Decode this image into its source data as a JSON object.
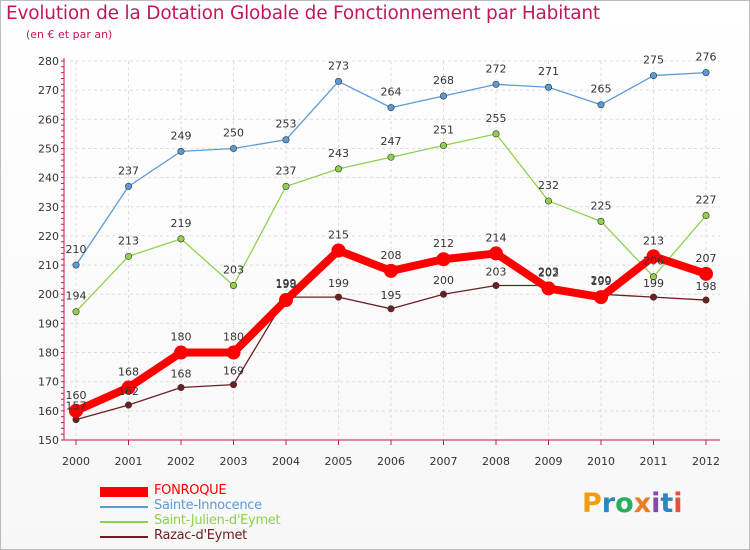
{
  "header": {
    "title": "Evolution de la Dotation Globale de Fonctionnement par Habitant",
    "subtitle": "(en € et par an)"
  },
  "logo": {
    "letters": [
      "P",
      "r",
      "o",
      "x",
      "i",
      "t",
      "i"
    ],
    "colors": [
      "#f39c12",
      "#2e86c1",
      "#27ae60",
      "#e67e22",
      "#8e44ad",
      "#2e86c1",
      "#e74c3c"
    ]
  },
  "chart_data": {
    "type": "line",
    "x": [
      "2000",
      "2001",
      "2002",
      "2003",
      "2004",
      "2005",
      "2006",
      "2007",
      "2008",
      "2009",
      "2010",
      "2011",
      "2012"
    ],
    "ylim": [
      150,
      280
    ],
    "yticks": [
      150,
      160,
      170,
      180,
      190,
      200,
      210,
      220,
      230,
      240,
      250,
      260,
      270,
      280
    ],
    "grid": true,
    "legend_position": "bottom-left",
    "series": [
      {
        "name": "Razac-d'Eymet",
        "color": "#6d1f22",
        "values": [
          157,
          162,
          168,
          169,
          199,
          199,
          195,
          200,
          203,
          203,
          200,
          199,
          198
        ]
      },
      {
        "name": "Saint-Julien-d'Eymet",
        "color": "#8fd14f",
        "values": [
          194,
          213,
          219,
          203,
          237,
          243,
          247,
          251,
          255,
          232,
          225,
          206,
          227
        ]
      },
      {
        "name": "Sainte-Innocence",
        "color": "#5b9bd5",
        "values": [
          210,
          237,
          249,
          250,
          253,
          273,
          264,
          268,
          272,
          271,
          265,
          275,
          276
        ]
      },
      {
        "name": "FONROQUE",
        "color": "#ff0000",
        "values": [
          160,
          168,
          180,
          180,
          198,
          215,
          208,
          212,
          214,
          202,
          199,
          213,
          207
        ]
      }
    ]
  },
  "legend": [
    {
      "label": "FONROQUE",
      "color": "#ff0000"
    },
    {
      "label": "Sainte-Innocence",
      "color": "#5b9bd5"
    },
    {
      "label": "Saint-Julien-d'Eymet",
      "color": "#8fd14f"
    },
    {
      "label": "Razac-d'Eymet",
      "color": "#6d1f22"
    }
  ]
}
